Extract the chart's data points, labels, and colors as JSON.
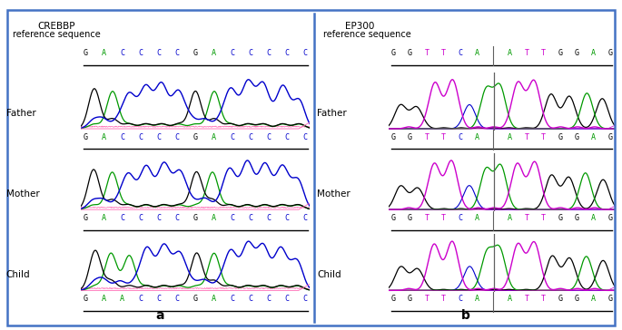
{
  "figure_width": 6.85,
  "figure_height": 3.64,
  "dpi": 100,
  "background_color": "#ffffff",
  "border_color": "#4472C4",
  "panel_a_title": "CREBBP",
  "panel_b_title": "EP300",
  "ref_label": "reference sequence",
  "panel_label_a": "a",
  "panel_label_b": "b",
  "crebbp_ref_seq": [
    "G",
    "A",
    "C",
    "C",
    "C",
    "C",
    "G",
    "A",
    "C",
    "C",
    "C",
    "C",
    "C"
  ],
  "crebbp_father_seq": [
    "G",
    "A",
    "C",
    "C",
    "C",
    "C",
    "G",
    "A",
    "C",
    "C",
    "C",
    "C",
    "C"
  ],
  "crebbp_mother_seq": [
    "G",
    "A",
    "C",
    "C",
    "C",
    "C",
    "G",
    "A",
    "C",
    "C",
    "C",
    "C",
    "C"
  ],
  "crebbp_child_seq": [
    "G",
    "A",
    "A",
    "C",
    "C",
    "C",
    "G",
    "A",
    "C",
    "C",
    "C",
    "C",
    "C"
  ],
  "ep300_ref_seq": [
    "G",
    "G",
    "T",
    "T",
    "C",
    "A",
    "|",
    "A",
    "T",
    "T",
    "G",
    "G",
    "A",
    "G"
  ],
  "ep300_father_seq": [
    "G",
    "G",
    "T",
    "T",
    "C",
    "A",
    "|",
    "A",
    "T",
    "T",
    "G",
    "G",
    "A",
    "G"
  ],
  "ep300_mother_seq": [
    "G",
    "G",
    "T",
    "T",
    "C",
    "A",
    "|",
    "A",
    "T",
    "T",
    "G",
    "G",
    "A",
    "G"
  ],
  "ep300_child_seq": [
    "G",
    "G",
    "T",
    "T",
    "C",
    "A",
    "|",
    "A",
    "T",
    "T",
    "G",
    "G",
    "A",
    "G"
  ],
  "base_colors": {
    "G": "#000000",
    "A": "#009900",
    "C": "#0000cc",
    "T": "#cc00cc",
    "|": "#808080"
  },
  "row_labels": [
    "Father",
    "Mother",
    "Child"
  ],
  "font_size_title": 7.5,
  "font_size_reflabel": 7,
  "font_size_seq": 6,
  "font_size_rowlabel": 7.5,
  "font_size_panel": 10
}
